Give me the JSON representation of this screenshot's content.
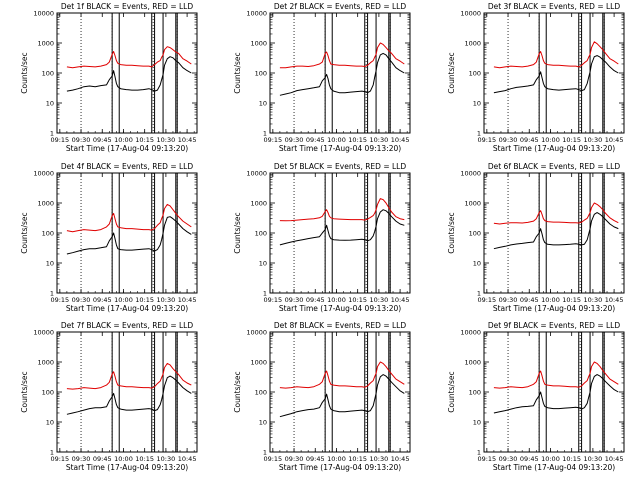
{
  "chart_data": {
    "type": "line",
    "y_scale": "log",
    "ylim": [
      1,
      10000
    ],
    "grid": false,
    "x_ticks": [
      "09:15",
      "09:30",
      "09:45",
      "10:00",
      "10:15",
      "10:30",
      "10:45"
    ],
    "y_ticks": [
      "1",
      "10",
      "100",
      "1000",
      "10000"
    ],
    "ylabel": "Counts/sec",
    "xlabel": "Start Time (17-Aug-04 09:13:20)",
    "colors": {
      "events": "#000000",
      "lld": "#e00000",
      "frame": "#000000"
    },
    "marker_lines": {
      "dotted": [
        "09:30",
        "09:52",
        "10:21",
        "10:38"
      ],
      "solid": [
        "09:52",
        "09:57",
        "10:20",
        "10:22",
        "10:28",
        "10:37",
        "10:38"
      ]
    },
    "time_x": [
      "09:20",
      "09:24",
      "09:28",
      "09:32",
      "09:36",
      "09:40",
      "09:44",
      "09:48",
      "09:50",
      "09:52",
      "09:53",
      "09:54",
      "09:55",
      "09:56",
      "09:58",
      "10:02",
      "10:06",
      "10:10",
      "10:14",
      "10:18",
      "10:20",
      "10:22",
      "10:24",
      "10:26",
      "10:27",
      "10:28",
      "10:29",
      "10:31",
      "10:33",
      "10:35",
      "10:37",
      "10:39",
      "10:42",
      "10:45",
      "10:48"
    ],
    "panels": [
      {
        "title": "Det 1f BLACK = Events, RED = LLD",
        "series": [
          {
            "color": "#e00000",
            "values": [
              160,
              150,
              160,
              170,
              165,
              160,
              170,
              190,
              230,
              420,
              520,
              380,
              260,
              210,
              190,
              180,
              180,
              175,
              170,
              170,
              160,
              190,
              230,
              260,
              330,
              400,
              600,
              750,
              700,
              600,
              500,
              450,
              300,
              250,
              200
            ]
          },
          {
            "color": "#000000",
            "values": [
              25,
              27,
              30,
              35,
              37,
              35,
              38,
              40,
              60,
              80,
              120,
              75,
              45,
              35,
              30,
              28,
              27,
              27,
              28,
              30,
              28,
              25,
              27,
              40,
              60,
              90,
              180,
              300,
              350,
              320,
              260,
              220,
              150,
              120,
              100
            ]
          }
        ]
      },
      {
        "title": "Det 2f BLACK = Events, RED = LLD",
        "series": [
          {
            "color": "#e00000",
            "values": [
              150,
              150,
              160,
              170,
              170,
              165,
              175,
              200,
              230,
              450,
              500,
              380,
              260,
              200,
              190,
              180,
              180,
              175,
              170,
              170,
              165,
              180,
              220,
              260,
              330,
              420,
              700,
              1000,
              900,
              700,
              550,
              450,
              300,
              250,
              200
            ]
          },
          {
            "color": "#000000",
            "values": [
              18,
              20,
              22,
              26,
              28,
              30,
              32,
              35,
              55,
              70,
              90,
              65,
              40,
              30,
              25,
              22,
              22,
              23,
              24,
              25,
              24,
              22,
              25,
              40,
              70,
              120,
              220,
              400,
              450,
              400,
              300,
              230,
              150,
              120,
              100
            ]
          }
        ]
      },
      {
        "title": "Det 3f BLACK = Events, RED = LLD",
        "series": [
          {
            "color": "#e00000",
            "values": [
              160,
              150,
              160,
              170,
              165,
              160,
              170,
              190,
              230,
              440,
              520,
              380,
              260,
              210,
              190,
              180,
              180,
              175,
              170,
              170,
              160,
              180,
              220,
              260,
              330,
              420,
              700,
              1100,
              950,
              750,
              600,
              450,
              300,
              250,
              200
            ]
          },
          {
            "color": "#000000",
            "values": [
              22,
              24,
              26,
              30,
              33,
              35,
              37,
              40,
              60,
              80,
              110,
              70,
              45,
              35,
              30,
              28,
              27,
              28,
              29,
              30,
              28,
              26,
              28,
              45,
              70,
              110,
              200,
              350,
              380,
              340,
              280,
              230,
              160,
              120,
              100
            ]
          }
        ]
      },
      {
        "title": "Det 4f BLACK = Events, RED = LLD",
        "series": [
          {
            "color": "#e00000",
            "values": [
              120,
              110,
              120,
              130,
              125,
              120,
              130,
              160,
              200,
              380,
              450,
              300,
              200,
              160,
              150,
              140,
              140,
              135,
              130,
              130,
              125,
              140,
              180,
              220,
              300,
              400,
              650,
              900,
              800,
              600,
              450,
              350,
              250,
              200,
              160
            ]
          },
          {
            "color": "#000000",
            "values": [
              20,
              22,
              25,
              28,
              30,
              30,
              32,
              35,
              55,
              75,
              100,
              65,
              40,
              30,
              28,
              27,
              27,
              28,
              29,
              30,
              28,
              25,
              28,
              40,
              60,
              100,
              180,
              330,
              350,
              300,
              250,
              200,
              140,
              110,
              90
            ]
          }
        ]
      },
      {
        "title": "Det 5f BLACK = Events, RED = LLD",
        "series": [
          {
            "color": "#e00000",
            "values": [
              260,
              255,
              260,
              270,
              280,
              290,
              300,
              320,
              360,
              520,
              600,
              480,
              360,
              320,
              300,
              290,
              285,
              280,
              280,
              280,
              270,
              290,
              330,
              380,
              450,
              600,
              900,
              1400,
              1300,
              1000,
              700,
              500,
              350,
              300,
              280
            ]
          },
          {
            "color": "#000000",
            "values": [
              40,
              45,
              50,
              55,
              60,
              65,
              70,
              75,
              100,
              130,
              180,
              120,
              80,
              65,
              60,
              58,
              57,
              58,
              60,
              62,
              60,
              55,
              60,
              80,
              110,
              170,
              300,
              500,
              600,
              550,
              450,
              350,
              250,
              200,
              180
            ]
          }
        ]
      },
      {
        "title": "Det 6f BLACK = Events, RED = LLD",
        "series": [
          {
            "color": "#e00000",
            "values": [
              210,
              200,
              210,
              220,
              220,
              215,
              225,
              250,
              300,
              480,
              560,
              420,
              300,
              260,
              240,
              230,
              230,
              225,
              220,
              220,
              215,
              230,
              270,
              310,
              380,
              480,
              700,
              1000,
              900,
              750,
              600,
              450,
              320,
              260,
              220
            ]
          },
          {
            "color": "#000000",
            "values": [
              30,
              33,
              36,
              40,
              43,
              45,
              48,
              50,
              75,
              100,
              140,
              95,
              60,
              48,
              42,
              40,
              40,
              41,
              42,
              44,
              42,
              40,
              42,
              60,
              90,
              140,
              250,
              420,
              480,
              420,
              350,
              280,
              200,
              160,
              140
            ]
          }
        ]
      },
      {
        "title": "Det 7f BLACK = Events, RED = LLD",
        "series": [
          {
            "color": "#e00000",
            "values": [
              130,
              125,
              130,
              140,
              135,
              130,
              140,
              170,
              210,
              400,
              470,
              330,
              220,
              170,
              160,
              150,
              150,
              145,
              140,
              140,
              135,
              150,
              190,
              230,
              300,
              400,
              650,
              900,
              800,
              600,
              480,
              380,
              250,
              200,
              170
            ]
          },
          {
            "color": "#000000",
            "values": [
              18,
              20,
              22,
              25,
              28,
              30,
              30,
              32,
              50,
              70,
              90,
              60,
              38,
              30,
              27,
              25,
              25,
              26,
              27,
              28,
              27,
              24,
              26,
              38,
              55,
              90,
              160,
              300,
              340,
              300,
              250,
              200,
              140,
              110,
              90
            ]
          }
        ]
      },
      {
        "title": "Det 8f BLACK = Events, RED = LLD",
        "series": [
          {
            "color": "#e00000",
            "values": [
              140,
              135,
              140,
              150,
              145,
              140,
              150,
              180,
              220,
              420,
              500,
              350,
              230,
              180,
              170,
              160,
              160,
              155,
              150,
              150,
              145,
              160,
              200,
              240,
              320,
              420,
              700,
              1000,
              900,
              700,
              520,
              400,
              270,
              220,
              180
            ]
          },
          {
            "color": "#000000",
            "values": [
              15,
              17,
              19,
              22,
              24,
              26,
              27,
              30,
              45,
              60,
              85,
              55,
              35,
              27,
              24,
              22,
              22,
              23,
              24,
              25,
              24,
              22,
              24,
              35,
              55,
              90,
              170,
              320,
              380,
              340,
              270,
              210,
              150,
              110,
              90
            ]
          }
        ]
      },
      {
        "title": "Det 9f BLACK = Events, RED = LLD",
        "series": [
          {
            "color": "#e00000",
            "values": [
              140,
              135,
              140,
              150,
              145,
              140,
              150,
              180,
              220,
              420,
              500,
              350,
              230,
              180,
              170,
              160,
              160,
              155,
              150,
              150,
              145,
              160,
              200,
              240,
              320,
              420,
              700,
              1000,
              900,
              700,
              520,
              400,
              270,
              220,
              180
            ]
          },
          {
            "color": "#000000",
            "values": [
              20,
              22,
              24,
              27,
              30,
              32,
              33,
              35,
              55,
              75,
              100,
              65,
              42,
              33,
              30,
              28,
              28,
              29,
              30,
              31,
              30,
              27,
              30,
              42,
              65,
              100,
              190,
              330,
              380,
              340,
              280,
              220,
              160,
              120,
              100
            ]
          }
        ]
      }
    ]
  }
}
